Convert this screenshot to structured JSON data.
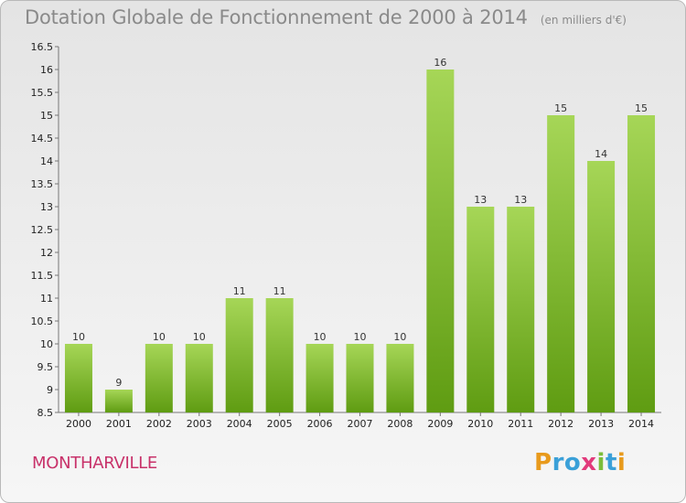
{
  "title": "Dotation Globale de Fonctionnement de 2000 à 2014",
  "unit": "(en milliers d'€)",
  "commune": "MONTHARVILLE",
  "logo": {
    "letters": [
      "P",
      "r",
      "o",
      "x",
      "i",
      "t",
      "i"
    ],
    "colors": [
      "#e89a1c",
      "#3aa0d8",
      "#3aa0d8",
      "#e23a7b",
      "#7bbd3a",
      "#3aa0d8",
      "#e89a1c"
    ]
  },
  "colors": {
    "bar_top": "#a6d657",
    "bar_bottom": "#5f9c12"
  },
  "chart_data": {
    "type": "bar",
    "title": "Dotation Globale de Fonctionnement de 2000 à 2014",
    "subtitle": "(en milliers d'€)",
    "categories": [
      "2000",
      "2001",
      "2002",
      "2003",
      "2004",
      "2005",
      "2006",
      "2007",
      "2008",
      "2009",
      "2010",
      "2011",
      "2012",
      "2013",
      "2014"
    ],
    "values": [
      10,
      9,
      10,
      10,
      11,
      11,
      10,
      10,
      10,
      16,
      13,
      13,
      15,
      14,
      15
    ],
    "ylim": [
      8.5,
      16.5
    ],
    "yticks": [
      "8.5",
      "9",
      "9.5",
      "10",
      "10.5",
      "11",
      "11.5",
      "12",
      "12.5",
      "13",
      "13.5",
      "14",
      "14.5",
      "15",
      "15.5",
      "16",
      "16.5"
    ],
    "grid": false,
    "xlabel": "",
    "ylabel": ""
  }
}
